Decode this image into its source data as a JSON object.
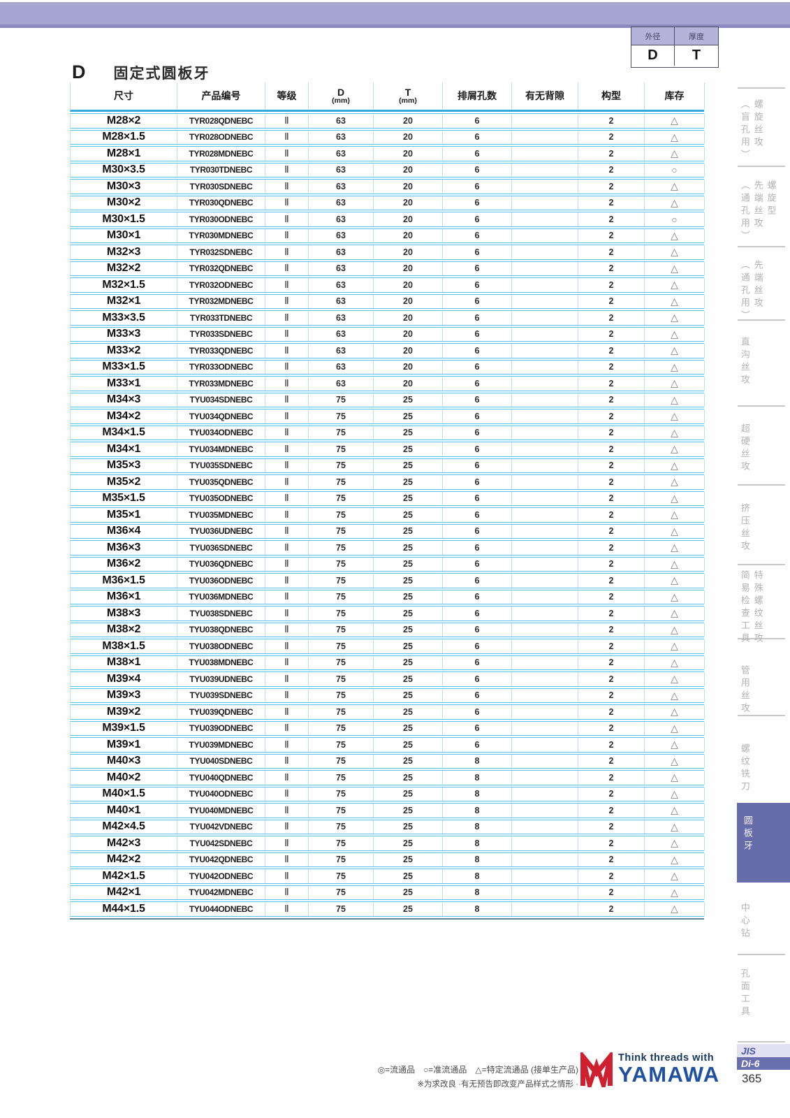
{
  "mini_table": {
    "headers": [
      "外径",
      "厚度"
    ],
    "values": [
      "D",
      "T"
    ]
  },
  "title": {
    "prefix": "D",
    "text": "固定式圆板牙"
  },
  "table": {
    "headers": {
      "size": "尺寸",
      "code": "产品编号",
      "grade": "等级",
      "d_main": "D",
      "d_sub": "(mm)",
      "t_main": "T",
      "t_sub": "(mm)",
      "holes": "排屑孔数",
      "backlash": "有无背隙",
      "config": "构型",
      "stock": "库存"
    },
    "row_fields": [
      "size",
      "code",
      "grade",
      "d_mm",
      "t_mm",
      "holes",
      "backlash",
      "config",
      "stock"
    ],
    "rows": [
      [
        "M28×2",
        "TYR028QDNEBC",
        "Ⅱ",
        "63",
        "20",
        "6",
        "",
        "2",
        "△"
      ],
      [
        "M28×1.5",
        "TYR028ODNEBC",
        "Ⅱ",
        "63",
        "20",
        "6",
        "",
        "2",
        "△"
      ],
      [
        "M28×1",
        "TYR028MDNEBC",
        "Ⅱ",
        "63",
        "20",
        "6",
        "",
        "2",
        "△"
      ],
      [
        "M30×3.5",
        "TYR030TDNEBC",
        "Ⅱ",
        "63",
        "20",
        "6",
        "",
        "2",
        "○"
      ],
      [
        "M30×3",
        "TYR030SDNEBC",
        "Ⅱ",
        "63",
        "20",
        "6",
        "",
        "2",
        "△"
      ],
      [
        "M30×2",
        "TYR030QDNEBC",
        "Ⅱ",
        "63",
        "20",
        "6",
        "",
        "2",
        "△"
      ],
      [
        "M30×1.5",
        "TYR030ODNEBC",
        "Ⅱ",
        "63",
        "20",
        "6",
        "",
        "2",
        "○"
      ],
      [
        "M30×1",
        "TYR030MDNEBC",
        "Ⅱ",
        "63",
        "20",
        "6",
        "",
        "2",
        "△"
      ],
      [
        "M32×3",
        "TYR032SDNEBC",
        "Ⅱ",
        "63",
        "20",
        "6",
        "",
        "2",
        "△"
      ],
      [
        "M32×2",
        "TYR032QDNEBC",
        "Ⅱ",
        "63",
        "20",
        "6",
        "",
        "2",
        "△"
      ],
      [
        "M32×1.5",
        "TYR032ODNEBC",
        "Ⅱ",
        "63",
        "20",
        "6",
        "",
        "2",
        "△"
      ],
      [
        "M32×1",
        "TYR032MDNEBC",
        "Ⅱ",
        "63",
        "20",
        "6",
        "",
        "2",
        "△"
      ],
      [
        "M33×3.5",
        "TYR033TDNEBC",
        "Ⅱ",
        "63",
        "20",
        "6",
        "",
        "2",
        "△"
      ],
      [
        "M33×3",
        "TYR033SDNEBC",
        "Ⅱ",
        "63",
        "20",
        "6",
        "",
        "2",
        "△"
      ],
      [
        "M33×2",
        "TYR033QDNEBC",
        "Ⅱ",
        "63",
        "20",
        "6",
        "",
        "2",
        "△"
      ],
      [
        "M33×1.5",
        "TYR033ODNEBC",
        "Ⅱ",
        "63",
        "20",
        "6",
        "",
        "2",
        "△"
      ],
      [
        "M33×1",
        "TYR033MDNEBC",
        "Ⅱ",
        "63",
        "20",
        "6",
        "",
        "2",
        "△"
      ],
      [
        "M34×3",
        "TYU034SDNEBC",
        "Ⅱ",
        "75",
        "25",
        "6",
        "",
        "2",
        "△"
      ],
      [
        "M34×2",
        "TYU034QDNEBC",
        "Ⅱ",
        "75",
        "25",
        "6",
        "",
        "2",
        "△"
      ],
      [
        "M34×1.5",
        "TYU034ODNEBC",
        "Ⅱ",
        "75",
        "25",
        "6",
        "",
        "2",
        "△"
      ],
      [
        "M34×1",
        "TYU034MDNEBC",
        "Ⅱ",
        "75",
        "25",
        "6",
        "",
        "2",
        "△"
      ],
      [
        "M35×3",
        "TYU035SDNEBC",
        "Ⅱ",
        "75",
        "25",
        "6",
        "",
        "2",
        "△"
      ],
      [
        "M35×2",
        "TYU035QDNEBC",
        "Ⅱ",
        "75",
        "25",
        "6",
        "",
        "2",
        "△"
      ],
      [
        "M35×1.5",
        "TYU035ODNEBC",
        "Ⅱ",
        "75",
        "25",
        "6",
        "",
        "2",
        "△"
      ],
      [
        "M35×1",
        "TYU035MDNEBC",
        "Ⅱ",
        "75",
        "25",
        "6",
        "",
        "2",
        "△"
      ],
      [
        "M36×4",
        "TYU036UDNEBC",
        "Ⅱ",
        "75",
        "25",
        "6",
        "",
        "2",
        "△"
      ],
      [
        "M36×3",
        "TYU036SDNEBC",
        "Ⅱ",
        "75",
        "25",
        "6",
        "",
        "2",
        "△"
      ],
      [
        "M36×2",
        "TYU036QDNEBC",
        "Ⅱ",
        "75",
        "25",
        "6",
        "",
        "2",
        "△"
      ],
      [
        "M36×1.5",
        "TYU036ODNEBC",
        "Ⅱ",
        "75",
        "25",
        "6",
        "",
        "2",
        "△"
      ],
      [
        "M36×1",
        "TYU036MDNEBC",
        "Ⅱ",
        "75",
        "25",
        "6",
        "",
        "2",
        "△"
      ],
      [
        "M38×3",
        "TYU038SDNEBC",
        "Ⅱ",
        "75",
        "25",
        "6",
        "",
        "2",
        "△"
      ],
      [
        "M38×2",
        "TYU038QDNEBC",
        "Ⅱ",
        "75",
        "25",
        "6",
        "",
        "2",
        "△"
      ],
      [
        "M38×1.5",
        "TYU038ODNEBC",
        "Ⅱ",
        "75",
        "25",
        "6",
        "",
        "2",
        "△"
      ],
      [
        "M38×1",
        "TYU038MDNEBC",
        "Ⅱ",
        "75",
        "25",
        "6",
        "",
        "2",
        "△"
      ],
      [
        "M39×4",
        "TYU039UDNEBC",
        "Ⅱ",
        "75",
        "25",
        "6",
        "",
        "2",
        "△"
      ],
      [
        "M39×3",
        "TYU039SDNEBC",
        "Ⅱ",
        "75",
        "25",
        "6",
        "",
        "2",
        "△"
      ],
      [
        "M39×2",
        "TYU039QDNEBC",
        "Ⅱ",
        "75",
        "25",
        "6",
        "",
        "2",
        "△"
      ],
      [
        "M39×1.5",
        "TYU039ODNEBC",
        "Ⅱ",
        "75",
        "25",
        "6",
        "",
        "2",
        "△"
      ],
      [
        "M39×1",
        "TYU039MDNEBC",
        "Ⅱ",
        "75",
        "25",
        "6",
        "",
        "2",
        "△"
      ],
      [
        "M40×3",
        "TYU040SDNEBC",
        "Ⅱ",
        "75",
        "25",
        "8",
        "",
        "2",
        "△"
      ],
      [
        "M40×2",
        "TYU040QDNEBC",
        "Ⅱ",
        "75",
        "25",
        "8",
        "",
        "2",
        "△"
      ],
      [
        "M40×1.5",
        "TYU040ODNEBC",
        "Ⅱ",
        "75",
        "25",
        "8",
        "",
        "2",
        "△"
      ],
      [
        "M40×1",
        "TYU040MDNEBC",
        "Ⅱ",
        "75",
        "25",
        "8",
        "",
        "2",
        "△"
      ],
      [
        "M42×4.5",
        "TYU042VDNEBC",
        "Ⅱ",
        "75",
        "25",
        "8",
        "",
        "2",
        "△"
      ],
      [
        "M42×3",
        "TYU042SDNEBC",
        "Ⅱ",
        "75",
        "25",
        "8",
        "",
        "2",
        "△"
      ],
      [
        "M42×2",
        "TYU042QDNEBC",
        "Ⅱ",
        "75",
        "25",
        "8",
        "",
        "2",
        "△"
      ],
      [
        "M42×1.5",
        "TYU042ODNEBC",
        "Ⅱ",
        "75",
        "25",
        "8",
        "",
        "2",
        "△"
      ],
      [
        "M42×1",
        "TYU042MDNEBC",
        "Ⅱ",
        "75",
        "25",
        "8",
        "",
        "2",
        "△"
      ],
      [
        "M44×1.5",
        "TYU044ODNEBC",
        "Ⅱ",
        "75",
        "25",
        "8",
        "",
        "2",
        "△"
      ]
    ]
  },
  "sidebar": {
    "items": [
      {
        "label": "螺旋丝攻（盲孔用）",
        "lines": [
          "螺旋丝攻",
          "（盲孔用）"
        ],
        "active": false
      },
      {
        "label": "螺旋型先端丝攻（通孔用）",
        "lines": [
          "螺旋型",
          "先端丝攻",
          "（通孔用）"
        ],
        "active": false
      },
      {
        "label": "先端丝攻（通孔用）",
        "lines": [
          "先端丝攻",
          "（通孔用）"
        ],
        "active": false
      },
      {
        "label": "直沟丝攻",
        "lines": [
          "直沟丝攻"
        ],
        "active": false
      },
      {
        "label": "超硬丝攻",
        "lines": [
          "超硬丝攻"
        ],
        "active": false
      },
      {
        "label": "挤压丝攻",
        "lines": [
          "挤压丝攻"
        ],
        "active": false
      },
      {
        "label": "特殊螺纹丝攻 简易检查工具",
        "lines": [
          "特殊螺纹丝攻",
          "简易检查工具"
        ],
        "active": false
      },
      {
        "label": "管用丝攻",
        "lines": [
          "管用丝攻"
        ],
        "active": false
      },
      {
        "label": "螺纹铣刀",
        "lines": [
          "螺纹铣刀"
        ],
        "active": false
      },
      {
        "label": "圆板牙",
        "lines": [
          "圆板牙"
        ],
        "active": true
      },
      {
        "label": "中心钻",
        "lines": [
          "中心钻"
        ],
        "active": false
      },
      {
        "label": "孔面工具",
        "lines": [
          "孔面工具"
        ],
        "active": false
      }
    ]
  },
  "footer": {
    "legend_line1": "◎=流通品　○=准流通品　△=特定流通品 (接单生产品)",
    "legend_line2": "※为求改良 ·有无预告即改变产品样式之情形 ·",
    "logo_tagline": "Think threads with",
    "logo_name": "YAMAWA",
    "tab_jis": "JIS",
    "tab_di": "Di-6",
    "page_number": "365"
  },
  "colors": {
    "banner": "#a7a5d2",
    "banner_edge": "#8c89c1",
    "row_line": "#58c2e8",
    "grid_line": "#b5e2f5",
    "header_underline": "#35aadc",
    "table_bottom_line": "#5d87a1",
    "active_tab_bg": "#676cab",
    "sidebar_text": "#b3b3b3",
    "logo_red": "#cf2030",
    "logo_blue": "#2050a0",
    "tagline_navy": "#16365c"
  }
}
